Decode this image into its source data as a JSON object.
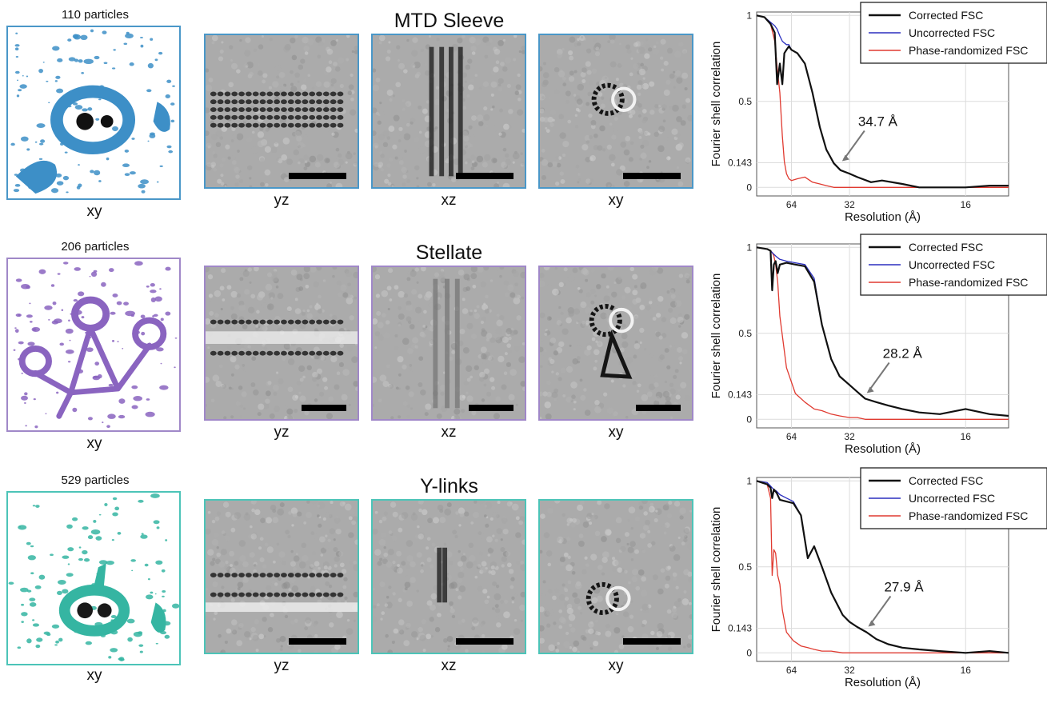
{
  "figure": {
    "rows": [
      {
        "id": "mtd",
        "title": "MTD Sleeve",
        "particles": "110 particles",
        "color": "#3d8fc7",
        "box_color": "#4a97c8",
        "volume_caption": "xy",
        "panels": [
          {
            "caption": "yz"
          },
          {
            "caption": "xz"
          },
          {
            "caption": "xy"
          }
        ],
        "fsc": {
          "ylabel": "Fourier shell correlation",
          "xlabel": "Resolution (Å)",
          "yticks": [
            "1",
            "0.5",
            "0.143",
            "0"
          ],
          "xticks": [
            "64",
            "32",
            "16"
          ],
          "legend": [
            "Corrected FSC",
            "Uncorrected FSC",
            "Phase-randomized FSC"
          ],
          "annotation": "34.7 Å"
        }
      },
      {
        "id": "stellate",
        "title": "Stellate",
        "particles": "206 particles",
        "color": "#8a64c0",
        "box_color": "#a088c8",
        "volume_caption": "xy",
        "panels": [
          {
            "caption": "yz"
          },
          {
            "caption": "xz"
          },
          {
            "caption": "xy"
          }
        ],
        "fsc": {
          "ylabel": "Fourier shell correlation",
          "xlabel": "Resolution (Å)",
          "yticks": [
            "1",
            "0.5",
            "0.143",
            "0"
          ],
          "xticks": [
            "64",
            "32",
            "16"
          ],
          "legend": [
            "Corrected FSC",
            "Uncorrected FSC",
            "Phase-randomized FSC"
          ],
          "annotation": "28.2 Å"
        }
      },
      {
        "id": "ylinks",
        "title": "Y-links",
        "particles": "529 particles",
        "color": "#35b5a2",
        "box_color": "#4cc4b8",
        "volume_caption": "xy",
        "panels": [
          {
            "caption": "yz"
          },
          {
            "caption": "xz"
          },
          {
            "caption": "xy"
          }
        ],
        "fsc": {
          "ylabel": "Fourier shell correlation",
          "xlabel": "Resolution (Å)",
          "yticks": [
            "1",
            "0.5",
            "0.143",
            "0"
          ],
          "xticks": [
            "64",
            "32",
            "16"
          ],
          "legend": [
            "Corrected FSC",
            "Uncorrected FSC",
            "Phase-randomized FSC"
          ],
          "annotation": "27.9 Å"
        }
      }
    ],
    "series_colors": {
      "corrected": "#111111",
      "uncorrected": "#2b2fbf",
      "phase_randomized": "#e03a30"
    }
  },
  "chart_data": [
    {
      "type": "line",
      "title": "",
      "xlabel": "Resolution (Å)",
      "ylabel": "Fourier shell correlation",
      "x_scale": "reciprocal",
      "xticks": [
        64,
        32,
        16
      ],
      "ylim": [
        -0.05,
        1.02
      ],
      "yticks": [
        1,
        0.5,
        0.143,
        0
      ],
      "legend_position": "top-right",
      "grid": true,
      "annotation": {
        "text": "34.7 Å",
        "x": 34.7,
        "y": 0.143
      },
      "series": [
        {
          "name": "Corrected FSC",
          "color": "#111111",
          "x": [
            160,
            120,
            100,
            90,
            85,
            80,
            76,
            73,
            70,
            67,
            64,
            58,
            52,
            47,
            43,
            40,
            37,
            34.7,
            32,
            30,
            27,
            25,
            22,
            20,
            18,
            16,
            14.5,
            13.5
          ],
          "y": [
            1.0,
            0.99,
            0.95,
            0.9,
            0.6,
            0.72,
            0.6,
            0.78,
            0.8,
            0.82,
            0.8,
            0.78,
            0.72,
            0.55,
            0.35,
            0.22,
            0.14,
            0.1,
            0.08,
            0.06,
            0.03,
            0.04,
            0.02,
            0.0,
            0.0,
            0.0,
            0.01,
            0.01
          ]
        },
        {
          "name": "Uncorrected FSC",
          "color": "#2b2fbf",
          "x": [
            160,
            120,
            100,
            90,
            85,
            80,
            76,
            73,
            70,
            67,
            64,
            58,
            52,
            47,
            43,
            40,
            37,
            34.7,
            32,
            30,
            27,
            25,
            22,
            20,
            18,
            16,
            14.5,
            13.5
          ],
          "y": [
            1.0,
            0.99,
            0.96,
            0.94,
            0.92,
            0.88,
            0.85,
            0.84,
            0.83,
            0.83,
            0.8,
            0.78,
            0.72,
            0.55,
            0.35,
            0.22,
            0.14,
            0.1,
            0.08,
            0.06,
            0.03,
            0.04,
            0.02,
            0.0,
            0.0,
            0.0,
            0.01,
            0.01
          ]
        },
        {
          "name": "Phase-randomized FSC",
          "color": "#e03a30",
          "x": [
            160,
            120,
            100,
            90,
            85,
            80,
            76,
            73,
            70,
            67,
            64,
            58,
            52,
            47,
            43,
            40,
            37,
            34.7,
            32,
            30,
            27,
            25,
            22,
            20,
            18,
            16,
            14.5,
            13.5
          ],
          "y": [
            1.0,
            0.99,
            0.95,
            0.85,
            0.7,
            0.55,
            0.3,
            0.15,
            0.08,
            0.05,
            0.04,
            0.05,
            0.06,
            0.03,
            0.02,
            0.01,
            0.0,
            0.0,
            0.0,
            0.0,
            0.0,
            0.0,
            0.0,
            0.0,
            0.0,
            0.0,
            0.0,
            0.0
          ]
        }
      ]
    },
    {
      "type": "line",
      "title": "",
      "xlabel": "Resolution (Å)",
      "ylabel": "Fourier shell correlation",
      "x_scale": "reciprocal",
      "xticks": [
        64,
        32,
        16
      ],
      "ylim": [
        -0.05,
        1.02
      ],
      "yticks": [
        1,
        0.5,
        0.143,
        0
      ],
      "legend_position": "top-right",
      "grid": true,
      "annotation": {
        "text": "28.2 Å",
        "x": 28.2,
        "y": 0.143
      },
      "series": [
        {
          "name": "Corrected FSC",
          "color": "#111111",
          "x": [
            160,
            110,
            100,
            96,
            92,
            88,
            84,
            80,
            70,
            60,
            52,
            46,
            42,
            38,
            35,
            32,
            30,
            28.2,
            26,
            24,
            22,
            20,
            18,
            16,
            14.5,
            13.5
          ],
          "y": [
            1.0,
            0.99,
            0.98,
            0.75,
            0.9,
            0.92,
            0.85,
            0.9,
            0.91,
            0.9,
            0.89,
            0.8,
            0.55,
            0.35,
            0.25,
            0.2,
            0.16,
            0.12,
            0.1,
            0.08,
            0.06,
            0.04,
            0.03,
            0.06,
            0.03,
            0.02
          ]
        },
        {
          "name": "Uncorrected FSC",
          "color": "#2b2fbf",
          "x": [
            160,
            110,
            100,
            96,
            92,
            88,
            84,
            80,
            70,
            60,
            52,
            46,
            42,
            38,
            35,
            32,
            30,
            28.2,
            26,
            24,
            22,
            20,
            18,
            16,
            14.5,
            13.5
          ],
          "y": [
            1.0,
            0.99,
            0.98,
            0.97,
            0.96,
            0.95,
            0.94,
            0.93,
            0.92,
            0.91,
            0.9,
            0.82,
            0.55,
            0.35,
            0.25,
            0.2,
            0.16,
            0.12,
            0.1,
            0.08,
            0.06,
            0.04,
            0.03,
            0.06,
            0.03,
            0.02
          ]
        },
        {
          "name": "Phase-randomized FSC",
          "color": "#e03a30",
          "x": [
            160,
            110,
            100,
            96,
            92,
            88,
            84,
            80,
            70,
            60,
            52,
            46,
            42,
            38,
            35,
            32,
            30,
            28.2,
            26,
            24,
            22,
            20,
            18,
            16,
            14.5,
            13.5
          ],
          "y": [
            1.0,
            0.99,
            0.98,
            0.97,
            0.95,
            0.9,
            0.8,
            0.6,
            0.3,
            0.15,
            0.1,
            0.06,
            0.05,
            0.03,
            0.02,
            0.01,
            0.01,
            0.0,
            0.0,
            0.0,
            0.0,
            0.0,
            0.0,
            0.0,
            0.0,
            0.0
          ]
        }
      ]
    },
    {
      "type": "line",
      "title": "",
      "xlabel": "Resolution (Å)",
      "ylabel": "Fourier shell correlation",
      "x_scale": "reciprocal",
      "xticks": [
        64,
        32,
        16
      ],
      "ylim": [
        -0.05,
        1.02
      ],
      "yticks": [
        1,
        0.5,
        0.143,
        0
      ],
      "legend_position": "top-right",
      "grid": true,
      "annotation": {
        "text": "27.9 Å",
        "x": 27.9,
        "y": 0.143
      },
      "series": [
        {
          "name": "Corrected FSC",
          "color": "#111111",
          "x": [
            160,
            110,
            100,
            96,
            92,
            86,
            80,
            70,
            62,
            55,
            50,
            46,
            42,
            38,
            34,
            32,
            30,
            27.9,
            26,
            24,
            22,
            20,
            18,
            16,
            14.5,
            13.5
          ],
          "y": [
            1.0,
            0.98,
            0.96,
            0.9,
            0.95,
            0.93,
            0.89,
            0.88,
            0.87,
            0.8,
            0.55,
            0.62,
            0.5,
            0.35,
            0.22,
            0.18,
            0.15,
            0.12,
            0.08,
            0.05,
            0.03,
            0.02,
            0.01,
            0.0,
            0.01,
            0.0
          ]
        },
        {
          "name": "Uncorrected FSC",
          "color": "#2b2fbf",
          "x": [
            160,
            110,
            100,
            96,
            92,
            86,
            80,
            70,
            62,
            55,
            50,
            46,
            42,
            38,
            34,
            32,
            30,
            27.9,
            26,
            24,
            22,
            20,
            18,
            16,
            14.5,
            13.5
          ],
          "y": [
            1.0,
            0.99,
            0.97,
            0.96,
            0.95,
            0.94,
            0.92,
            0.9,
            0.88,
            0.8,
            0.55,
            0.62,
            0.5,
            0.35,
            0.22,
            0.18,
            0.15,
            0.12,
            0.08,
            0.05,
            0.03,
            0.02,
            0.01,
            0.0,
            0.01,
            0.0
          ]
        },
        {
          "name": "Phase-randomized FSC",
          "color": "#e03a30",
          "x": [
            160,
            110,
            100,
            96,
            92,
            88,
            84,
            80,
            76,
            70,
            62,
            55,
            50,
            46,
            42,
            38,
            34,
            32,
            30,
            27.9,
            24,
            20,
            16,
            13.5
          ],
          "y": [
            1.0,
            0.98,
            0.9,
            0.45,
            0.6,
            0.58,
            0.45,
            0.4,
            0.25,
            0.12,
            0.07,
            0.04,
            0.03,
            0.02,
            0.01,
            0.01,
            0.0,
            0.0,
            0.0,
            0.0,
            0.0,
            0.0,
            0.0,
            0.0
          ]
        }
      ]
    }
  ]
}
